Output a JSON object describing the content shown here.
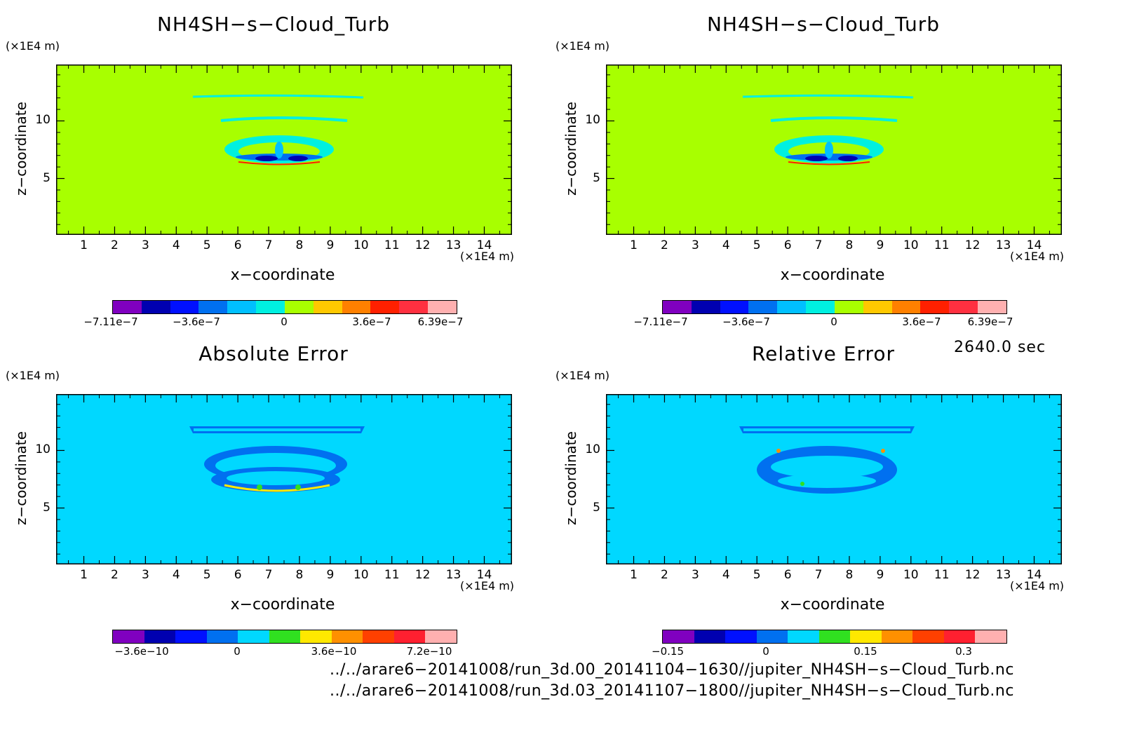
{
  "colors": {
    "level_bg_fill": "#a8ff00",
    "error_bg_fill": "#00d8ff",
    "cbar_top": [
      "#8000c0",
      "#0000b0",
      "#0010ff",
      "#0070f0",
      "#00c0ff",
      "#00f0e0",
      "#a8ff00",
      "#ffc800",
      "#ff8000",
      "#ff2000",
      "#ff3040",
      "#ffb0b0"
    ],
    "cbar_abs": [
      "#8000c0",
      "#0000b0",
      "#0010ff",
      "#0070f0",
      "#00d8ff",
      "#30e020",
      "#ffe800",
      "#ff9000",
      "#ff4000",
      "#ff2030",
      "#ffb0b0"
    ],
    "cbar_rel": [
      "#8000c0",
      "#0000b0",
      "#0010ff",
      "#0070f0",
      "#00d8ff",
      "#30e020",
      "#ffe800",
      "#ff9000",
      "#ff4000",
      "#ff2030",
      "#ffb0b0"
    ]
  },
  "panels": [
    {
      "title": "NH4SH−s−Cloud_Turb",
      "y_unit": "(×1E4 m)",
      "x_unit": "(×1E4 m)",
      "xlabel": "x−coordinate",
      "ylabel": "z−coordinate",
      "cbar_labels": [
        "−7.11e−7",
        "−3.6e−7",
        "0",
        "3.6e−7",
        "6.39e−7"
      ]
    },
    {
      "title": "NH4SH−s−Cloud_Turb",
      "y_unit": "(×1E4 m)",
      "x_unit": "(×1E4 m)",
      "xlabel": "x−coordinate",
      "ylabel": "z−coordinate",
      "cbar_labels": [
        "−7.11e−7",
        "−3.6e−7",
        "0",
        "3.6e−7",
        "6.39e−7"
      ]
    },
    {
      "title": "Absolute Error",
      "y_unit": "(×1E4 m)",
      "x_unit": "(×1E4 m)",
      "xlabel": "x−coordinate",
      "ylabel": "z−coordinate",
      "cbar_labels": [
        "−3.6e−10",
        "0",
        "3.6e−10",
        "7.2e−10"
      ]
    },
    {
      "title": "Relative Error",
      "y_unit": "(×1E4 m)",
      "x_unit": "(×1E4 m)",
      "xlabel": "x−coordinate",
      "ylabel": "z−coordinate",
      "cbar_labels": [
        "−0.15",
        "0",
        "0.15",
        "0.3"
      ]
    }
  ],
  "time_label": "2640.0 sec",
  "file_paths": [
    "../../arare6−20141008/run_3d.00_20141104−1630//jupiter_NH4SH−s−Cloud_Turb.nc",
    "../../arare6−20141008/run_3d.03_20141107−1800//jupiter_NH4SH−s−Cloud_Turb.nc"
  ],
  "chart_data": [
    {
      "type": "heatmap",
      "title": "NH4SH−s−Cloud_Turb",
      "xlabel": "x−coordinate",
      "ylabel": "z−coordinate",
      "x_ticks": [
        1,
        2,
        3,
        4,
        5,
        6,
        7,
        8,
        9,
        10,
        11,
        12,
        13,
        14
      ],
      "y_ticks": [
        5,
        10
      ],
      "xlim": [
        0.1,
        14.9
      ],
      "ylim": [
        0.1,
        14.9
      ],
      "colorbar": {
        "min": -7.11e-07,
        "max": 6.39e-07,
        "labels": [
          "−7.11e−7",
          "−3.6e−7",
          "0",
          "3.6e−7",
          "6.39e−7"
        ]
      }
    },
    {
      "type": "heatmap",
      "title": "NH4SH−s−Cloud_Turb",
      "xlabel": "x−coordinate",
      "ylabel": "z−coordinate",
      "x_ticks": [
        1,
        2,
        3,
        4,
        5,
        6,
        7,
        8,
        9,
        10,
        11,
        12,
        13,
        14
      ],
      "y_ticks": [
        5,
        10
      ],
      "xlim": [
        0.1,
        14.9
      ],
      "ylim": [
        0.1,
        14.9
      ],
      "colorbar": {
        "min": -7.11e-07,
        "max": 6.39e-07,
        "labels": [
          "−7.11e−7",
          "−3.6e−7",
          "0",
          "3.6e−7",
          "6.39e−7"
        ]
      }
    },
    {
      "type": "heatmap",
      "title": "Absolute Error",
      "xlabel": "x−coordinate",
      "ylabel": "z−coordinate",
      "x_ticks": [
        1,
        2,
        3,
        4,
        5,
        6,
        7,
        8,
        9,
        10,
        11,
        12,
        13,
        14
      ],
      "y_ticks": [
        5,
        10
      ],
      "xlim": [
        0.1,
        14.9
      ],
      "ylim": [
        0.1,
        14.9
      ],
      "colorbar": {
        "min": -4.5e-10,
        "max": 7.2e-10,
        "labels": [
          "−3.6e−10",
          "0",
          "3.6e−10",
          "7.2e−10"
        ]
      }
    },
    {
      "type": "heatmap",
      "title": "Relative Error",
      "xlabel": "x−coordinate",
      "ylabel": "z−coordinate",
      "x_ticks": [
        1,
        2,
        3,
        4,
        5,
        6,
        7,
        8,
        9,
        10,
        11,
        12,
        13,
        14
      ],
      "y_ticks": [
        5,
        10
      ],
      "xlim": [
        0.1,
        14.9
      ],
      "ylim": [
        0.1,
        14.9
      ],
      "colorbar": {
        "min": -0.18,
        "max": 0.35,
        "labels": [
          "−0.15",
          "0",
          "0.15",
          "0.3"
        ]
      }
    }
  ]
}
